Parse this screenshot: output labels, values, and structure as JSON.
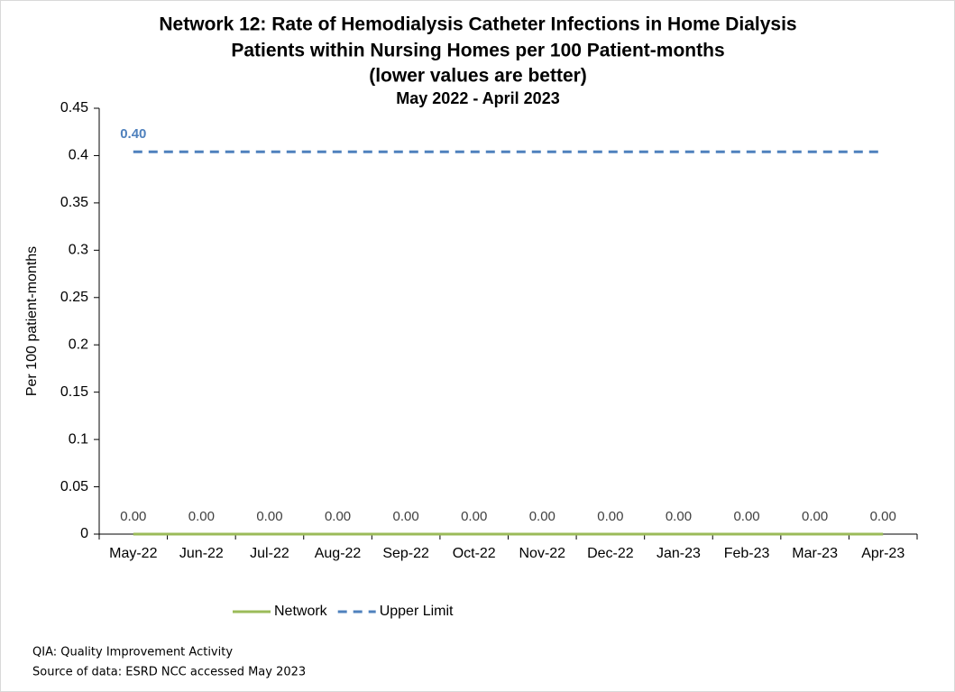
{
  "chart_data": {
    "type": "line",
    "title": [
      "Network 12: Rate of Hemodialysis Catheter Infections in Home Dialysis",
      "Patients within Nursing Homes per 100 Patient-months",
      "(lower values are better)"
    ],
    "subtitle": "May 2022 - April 2023",
    "y_label": "Per 100 patient-months",
    "categories": [
      "May-22",
      "Jun-22",
      "Jul-22",
      "Aug-22",
      "Sep-22",
      "Oct-22",
      "Nov-22",
      "Dec-22",
      "Jan-23",
      "Feb-23",
      "Mar-23",
      "Apr-23"
    ],
    "series": [
      {
        "name": "Network",
        "color": "#9bbb59",
        "dashed": false,
        "values": [
          0,
          0,
          0,
          0,
          0,
          0,
          0,
          0,
          0,
          0,
          0,
          0
        ],
        "value_labels": [
          "0.00",
          "0.00",
          "0.00",
          "0.00",
          "0.00",
          "0.00",
          "0.00",
          "0.00",
          "0.00",
          "0.00",
          "0.00",
          "0.00"
        ]
      },
      {
        "name": "Upper Limit",
        "color": "#4f81bd",
        "dashed": true,
        "values": [
          0.404,
          0.404,
          0.404,
          0.404,
          0.404,
          0.404,
          0.404,
          0.404,
          0.404,
          0.404,
          0.404,
          0.404
        ],
        "value_labels": [
          "0.40",
          null,
          null,
          null,
          null,
          null,
          null,
          null,
          null,
          null,
          null,
          null
        ]
      }
    ],
    "ylim": [
      0,
      0.45
    ],
    "yticks": [
      0,
      0.05,
      0.1,
      0.15,
      0.2,
      0.25,
      0.3,
      0.35,
      0.4,
      0.45
    ],
    "legend": "bottom",
    "footnotes": [
      "QIA:  Quality Improvement Activity",
      "Source of data:  ESRD NCC accessed May 2023"
    ]
  }
}
